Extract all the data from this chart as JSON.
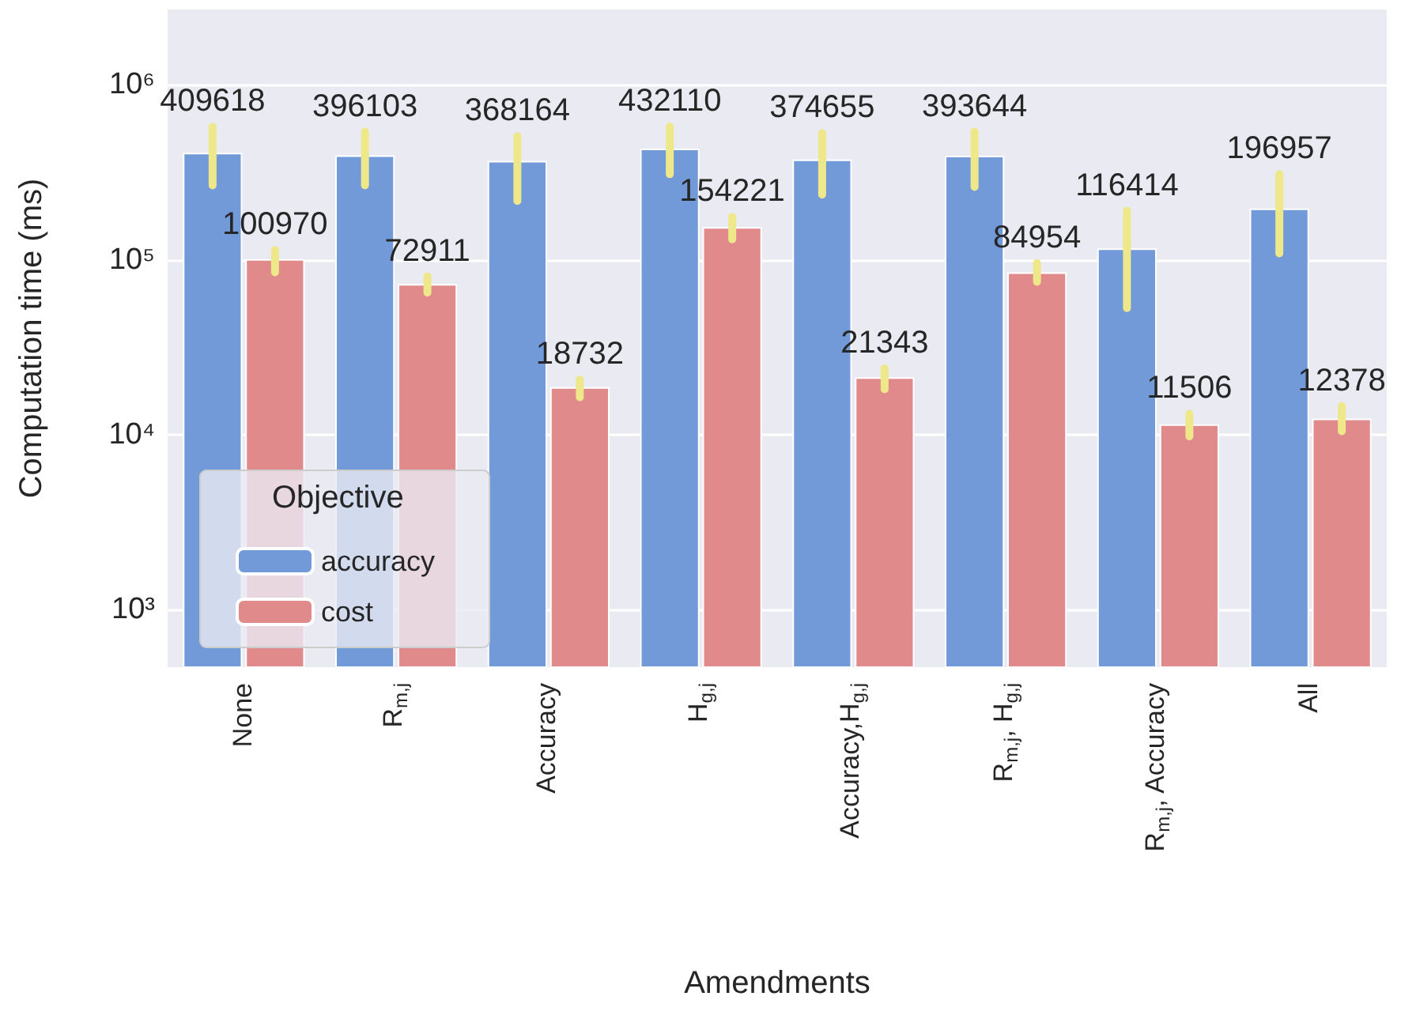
{
  "chart_data": {
    "type": "bar",
    "xlabel": "Amendments",
    "ylabel": "Computation time (ms)",
    "legend_title": "Objective",
    "categories": [
      "None",
      "R$_{m,j}$",
      "Accuracy",
      "H$_{g,j}$",
      "Accuracy,H$_{g,j}$",
      "R$_{m,j}$, H$_{g,j}$",
      "R$_{m,j}$, Accuracy",
      "All"
    ],
    "series": [
      {
        "name": "accuracy",
        "color": "#729ad9",
        "values": [
          409618,
          396103,
          368164,
          432110,
          374655,
          393644,
          116414,
          196957
        ],
        "errors": [
          [
            267000,
            577000
          ],
          [
            267000,
            541000
          ],
          [
            217000,
            509000
          ],
          [
            309000,
            577000
          ],
          [
            236000,
            530000
          ],
          [
            261000,
            541000
          ],
          [
            53000,
            191000
          ],
          [
            109000,
            309000
          ]
        ]
      },
      {
        "name": "cost",
        "color": "#e08a8c",
        "values": [
          100970,
          72911,
          18732,
          154221,
          21343,
          84954,
          11506,
          12378
        ],
        "errors": [
          [
            85000,
            114000
          ],
          [
            65000,
            80500
          ],
          [
            16400,
            20700
          ],
          [
            131000,
            176000
          ],
          [
            18200,
            24000
          ],
          [
            75000,
            96000
          ],
          [
            9800,
            13200
          ],
          [
            10500,
            14600
          ]
        ]
      }
    ],
    "log": "y",
    "ylim": [
      470,
      2700000
    ],
    "yticks": [
      {
        "value": 1000,
        "label": "10³"
      },
      {
        "value": 10000,
        "label": "10⁴"
      },
      {
        "value": 100000,
        "label": "10⁵"
      },
      {
        "value": 1000000,
        "label": "10⁶"
      }
    ],
    "grid": "y",
    "legend": "bottom left",
    "data_labels": true
  }
}
